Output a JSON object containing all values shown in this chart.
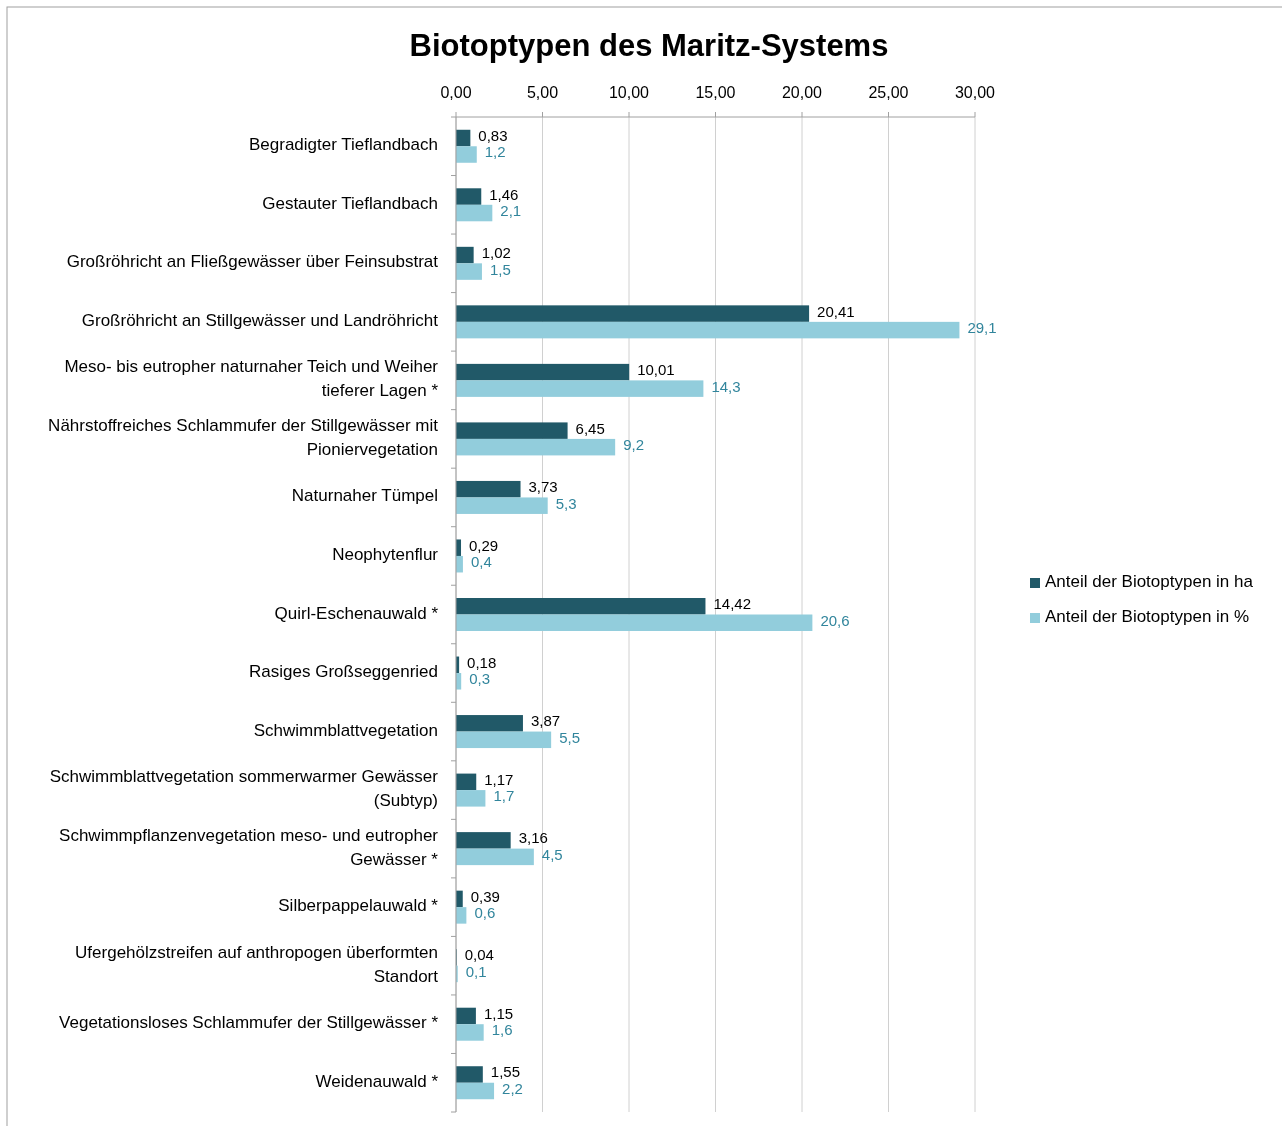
{
  "chart_data": {
    "type": "bar",
    "orientation": "horizontal",
    "title": "Biotoptypen des Maritz-Systems",
    "categories": [
      "Begradigter Tieflandbach",
      "Gestauter Tieflandbach",
      "Großröhricht an Fließgewässer über Feinsubstrat",
      "Großröhricht an Stillgewässer und Landröhricht",
      "Meso- bis eutropher naturnaher Teich und Weiher tieferer Lagen *",
      "Nährstoffreiches Schlammufer der Stillgewässer mit Pioniervegetation",
      "Naturnaher Tümpel",
      "Neophytenflur",
      "Quirl-Eschenauwald  *",
      "Rasiges Großseggenried",
      "Schwimmblattvegetation",
      "Schwimmblattvegetation sommerwarmer Gewässer (Subtyp)",
      "Schwimmpflanzenvegetation meso- und eutropher Gewässer *",
      "Silberpappelauwald *",
      "Ufergehölzstreifen auf anthropogen überformten Standort",
      "Vegetationsloses Schlammufer der Stillgewässer *",
      "Weidenauwald *"
    ],
    "series": [
      {
        "name": "Anteil der Biotoptypen in ha",
        "color": "#215968",
        "values": [
          0.83,
          1.46,
          1.02,
          20.41,
          10.01,
          6.45,
          3.73,
          0.29,
          14.42,
          0.18,
          3.87,
          1.17,
          3.16,
          0.39,
          0.04,
          1.15,
          1.55
        ],
        "value_labels": [
          "0,83",
          "1,46",
          "1,02",
          "20,41",
          "10,01",
          "6,45",
          "3,73",
          "0,29",
          "14,42",
          "0,18",
          "3,87",
          "1,17",
          "3,16",
          "0,39",
          "0,04",
          "1,15",
          "1,55"
        ]
      },
      {
        "name": "Anteil der Biotoptypen in %",
        "color": "#92cddc",
        "values": [
          1.2,
          2.1,
          1.5,
          29.1,
          14.3,
          9.2,
          5.3,
          0.4,
          20.6,
          0.3,
          5.5,
          1.7,
          4.5,
          0.6,
          0.1,
          1.6,
          2.2
        ],
        "value_labels": [
          "1,2",
          "2,1",
          "1,5",
          "29,1",
          "14,3",
          "9,2",
          "5,3",
          "0,4",
          "20,6",
          "0,3",
          "5,5",
          "1,7",
          "4,5",
          "0,6",
          "0,1",
          "1,6",
          "2,2"
        ]
      }
    ],
    "xlim": [
      0,
      30
    ],
    "xticks": [
      {
        "value": 0,
        "label": "0,00"
      },
      {
        "value": 5,
        "label": "5,00"
      },
      {
        "value": 10,
        "label": "10,00"
      },
      {
        "value": 15,
        "label": "15,00"
      },
      {
        "value": 20,
        "label": "20,00"
      },
      {
        "value": 25,
        "label": "25,00"
      },
      {
        "value": 30,
        "label": "30,00"
      }
    ],
    "grid": "x",
    "legend": "right"
  }
}
